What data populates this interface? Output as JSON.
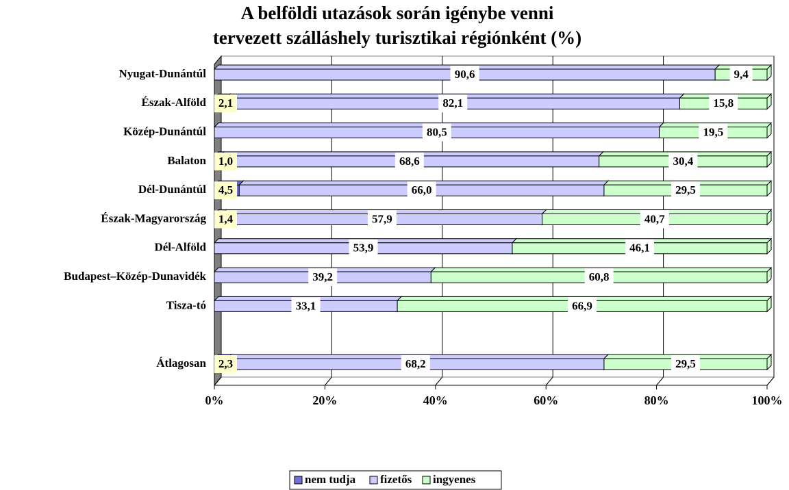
{
  "chart_data": {
    "type": "bar",
    "orientation": "horizontal",
    "stacked": true,
    "title": "A belföldi utazások során igénybe venni\ntervezett szálláshely turisztikai régiónként (%)",
    "categories": [
      "Nyugat-Dunántúl",
      "Észak-Alföld",
      "Közép-Dunántúl",
      "Balaton",
      "Dél-Dunántúl",
      "Észak-Magyarország",
      "Dél-Alföld",
      "Budapest–Közép-Dunavidék",
      "Tisza-tó",
      null,
      "Átlagosan"
    ],
    "series": [
      {
        "name": "nem tudja",
        "color": "#7070d8",
        "label_color": "#ffffcc",
        "values": [
          null,
          2.1,
          null,
          1.0,
          4.5,
          1.4,
          null,
          null,
          null,
          null,
          2.3
        ],
        "value_labels": [
          null,
          "2,1",
          null,
          "1,0",
          "4,5",
          "1,4",
          null,
          null,
          null,
          null,
          "2,3"
        ]
      },
      {
        "name": "fizetős",
        "color": "#ccccff",
        "label_color": "#ffffff",
        "values": [
          90.6,
          82.1,
          80.5,
          68.6,
          66.0,
          57.9,
          53.9,
          39.2,
          33.1,
          null,
          68.2
        ],
        "value_labels": [
          "90,6",
          "82,1",
          "80,5",
          "68,6",
          "66,0",
          "57,9",
          "53,9",
          "39,2",
          "33,1",
          null,
          "68,2"
        ]
      },
      {
        "name": "ingyenes",
        "color": "#ccffcc",
        "label_color": "#ffffff",
        "values": [
          9.4,
          15.8,
          19.5,
          30.4,
          29.5,
          40.7,
          46.1,
          60.8,
          66.9,
          null,
          29.5
        ],
        "value_labels": [
          "9,4",
          "15,8",
          "19,5",
          "30,4",
          "29,5",
          "40,7",
          "46,1",
          "60,8",
          "66,9",
          null,
          "29,5"
        ]
      }
    ],
    "xlim": [
      0,
      100
    ],
    "xticks": [
      {
        "value": 0,
        "label": "0%"
      },
      {
        "value": 20,
        "label": "20%"
      },
      {
        "value": 40,
        "label": "40%"
      },
      {
        "value": 60,
        "label": "60%"
      },
      {
        "value": 80,
        "label": "80%"
      },
      {
        "value": 100,
        "label": "100%"
      }
    ],
    "grid": true,
    "legend": "bottom"
  }
}
